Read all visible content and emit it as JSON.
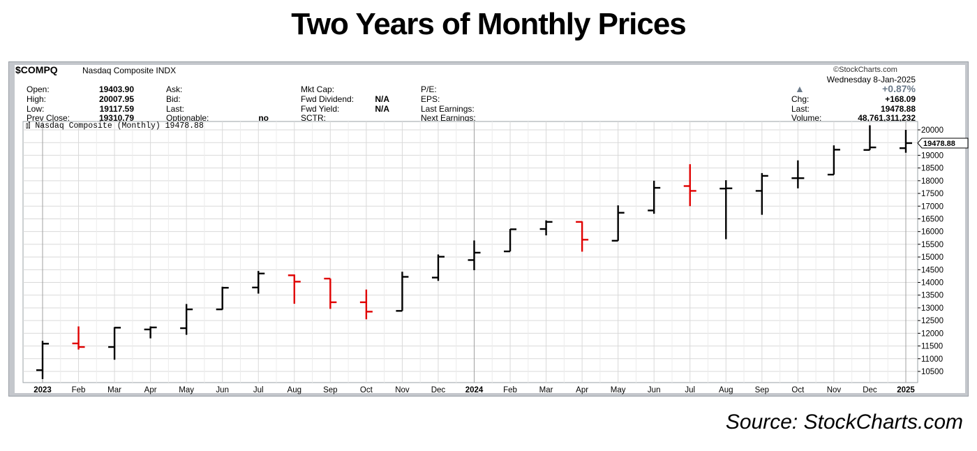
{
  "title": "Two Years of Monthly Prices",
  "source": "Source: StockCharts.com",
  "header": {
    "symbol": "$COMPQ",
    "name": "Nasdaq Composite",
    "type": "INDX",
    "watermark": "©StockCharts.com",
    "date": "Wednesday  8-Jan-2025",
    "pct_change": "+0.87%",
    "up_arrow": "▲",
    "col1": [
      {
        "label": "Open:",
        "value": "19403.90"
      },
      {
        "label": "High:",
        "value": "20007.95"
      },
      {
        "label": "Low:",
        "value": "19117.59"
      },
      {
        "label": "Prev Close:",
        "value": "19310.79"
      }
    ],
    "col2": [
      {
        "label": "Ask:",
        "value": ""
      },
      {
        "label": "Bid:",
        "value": ""
      },
      {
        "label": "Last:",
        "value": ""
      },
      {
        "label": "Optionable:",
        "value": "no"
      }
    ],
    "col3": [
      {
        "label": "Mkt Cap:",
        "value": ""
      },
      {
        "label": "Fwd Dividend:",
        "value": "N/A"
      },
      {
        "label": "Fwd Yield:",
        "value": "N/A"
      },
      {
        "label": "SCTR:",
        "value": ""
      }
    ],
    "col4": [
      {
        "label": "P/E:",
        "value": ""
      },
      {
        "label": "EPS:",
        "value": ""
      },
      {
        "label": "Last Earnings:",
        "value": ""
      },
      {
        "label": "Next Earnings:",
        "value": ""
      }
    ],
    "col5": [
      {
        "label": "Chg:",
        "value": "+168.09"
      },
      {
        "label": "Last:",
        "value": "19478.88"
      },
      {
        "label": "Volume:",
        "value": "48,761,311,232"
      }
    ]
  },
  "legend": "Nasdaq Composite (Monthly) 19478.88",
  "last_price_tag": "19478.88",
  "colors": {
    "up": "#000000",
    "down": "#e00000",
    "grid": "#d9d9d9",
    "frame": "#c4c7cc"
  },
  "chart_data": {
    "type": "ohlc",
    "title": "Nasdaq Composite (Monthly) 19478.88",
    "xlabel": "",
    "ylabel": "",
    "ylim": [
      10000,
      20300
    ],
    "y_ticks": [
      10500,
      11000,
      11500,
      12000,
      12500,
      13000,
      13500,
      14000,
      14500,
      15000,
      15500,
      16000,
      16500,
      17000,
      17500,
      18000,
      18500,
      19000,
      19500,
      20000
    ],
    "categories": [
      "2023",
      "Feb",
      "Mar",
      "Apr",
      "May",
      "Jun",
      "Jul",
      "Aug",
      "Sep",
      "Oct",
      "Nov",
      "Dec",
      "2024",
      "Feb",
      "Mar",
      "Apr",
      "May",
      "Jun",
      "Jul",
      "Aug",
      "Sep",
      "Oct",
      "Nov",
      "Dec",
      "2025"
    ],
    "bold_labels": [
      "2023",
      "2024",
      "2025"
    ],
    "bars": [
      {
        "o": 10550,
        "h": 11700,
        "l": 10200,
        "c": 11590
      },
      {
        "o": 11600,
        "h": 12270,
        "l": 11360,
        "c": 11460
      },
      {
        "o": 11460,
        "h": 12240,
        "l": 10960,
        "c": 12220
      },
      {
        "o": 12150,
        "h": 12270,
        "l": 11800,
        "c": 12230
      },
      {
        "o": 12200,
        "h": 13150,
        "l": 11940,
        "c": 12940
      },
      {
        "o": 12940,
        "h": 13830,
        "l": 12930,
        "c": 13790
      },
      {
        "o": 13800,
        "h": 14450,
        "l": 13560,
        "c": 14350
      },
      {
        "o": 14280,
        "h": 14310,
        "l": 13160,
        "c": 14030
      },
      {
        "o": 14150,
        "h": 14150,
        "l": 12960,
        "c": 13220
      },
      {
        "o": 13220,
        "h": 13720,
        "l": 12550,
        "c": 12850
      },
      {
        "o": 12880,
        "h": 14420,
        "l": 12880,
        "c": 14220
      },
      {
        "o": 14190,
        "h": 15100,
        "l": 14060,
        "c": 15010
      },
      {
        "o": 14880,
        "h": 15650,
        "l": 14480,
        "c": 15170
      },
      {
        "o": 15220,
        "h": 16100,
        "l": 15220,
        "c": 16090
      },
      {
        "o": 16100,
        "h": 16440,
        "l": 15850,
        "c": 16380
      },
      {
        "o": 16380,
        "h": 16400,
        "l": 15210,
        "c": 15680
      },
      {
        "o": 15640,
        "h": 17030,
        "l": 15640,
        "c": 16740
      },
      {
        "o": 16830,
        "h": 18000,
        "l": 16700,
        "c": 17720
      },
      {
        "o": 17790,
        "h": 18650,
        "l": 17000,
        "c": 17600
      },
      {
        "o": 17690,
        "h": 18020,
        "l": 15700,
        "c": 17700
      },
      {
        "o": 17600,
        "h": 18300,
        "l": 16660,
        "c": 18190
      },
      {
        "o": 18100,
        "h": 18800,
        "l": 17700,
        "c": 18100
      },
      {
        "o": 18240,
        "h": 19390,
        "l": 18240,
        "c": 19220
      },
      {
        "o": 19210,
        "h": 20180,
        "l": 19210,
        "c": 19310
      },
      {
        "o": 19280,
        "h": 20000,
        "l": 19100,
        "c": 19478.88
      }
    ]
  }
}
